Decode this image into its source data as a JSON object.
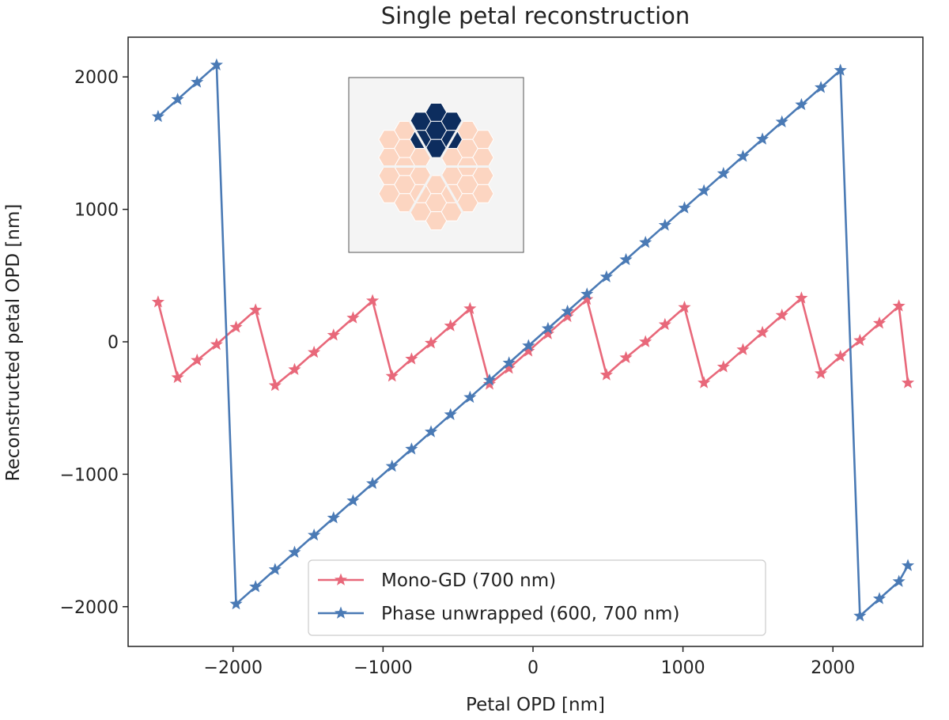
{
  "chart_data": {
    "type": "line",
    "title": "Single petal reconstruction",
    "xlabel": "Petal OPD [nm]",
    "ylabel": "Reconstructed petal OPD [nm]",
    "xlim": [
      -2700,
      2600
    ],
    "ylim": [
      -2300,
      2300
    ],
    "xticks": [
      -2000,
      -1000,
      0,
      1000,
      2000
    ],
    "xtick_labels": [
      "−2000",
      "−1000",
      "0",
      "1000",
      "2000"
    ],
    "yticks": [
      -2000,
      -1000,
      0,
      1000,
      2000
    ],
    "ytick_labels": [
      "−2000",
      "−1000",
      "0",
      "1000",
      "2000"
    ],
    "legend_position": "lower-center",
    "series": [
      {
        "name": "Mono-GD (700 nm)",
        "color": "#e8687a",
        "marker": "star",
        "x": [
          -2500,
          -2370,
          -2240,
          -2110,
          -1980,
          -1850,
          -1720,
          -1590,
          -1460,
          -1330,
          -1200,
          -1070,
          -940,
          -810,
          -680,
          -550,
          -420,
          -290,
          -160,
          -30,
          100,
          230,
          360,
          490,
          620,
          750,
          880,
          1010,
          1140,
          1270,
          1400,
          1530,
          1660,
          1790,
          1920,
          2050,
          2180,
          2310,
          2440,
          2500
        ],
        "y": [
          300,
          -270,
          -140,
          -20,
          110,
          240,
          -330,
          -210,
          -80,
          50,
          180,
          310,
          -260,
          -130,
          -10,
          120,
          250,
          -320,
          -200,
          -70,
          60,
          190,
          320,
          -250,
          -120,
          0,
          130,
          260,
          -310,
          -190,
          -60,
          70,
          200,
          330,
          -240,
          -110,
          10,
          140,
          270,
          -310
        ]
      },
      {
        "name": "Phase unwrapped (600, 700 nm)",
        "color": "#4a7ab5",
        "marker": "star",
        "x": [
          -2500,
          -2370,
          -2240,
          -2110,
          -1980,
          -1850,
          -1720,
          -1590,
          -1460,
          -1330,
          -1200,
          -1070,
          -940,
          -810,
          -680,
          -550,
          -420,
          -290,
          -160,
          -30,
          100,
          230,
          360,
          490,
          620,
          750,
          880,
          1010,
          1140,
          1270,
          1400,
          1530,
          1660,
          1790,
          1920,
          2050,
          2180,
          2310,
          2440,
          2500
        ],
        "y": [
          1700,
          1830,
          1960,
          2090,
          -1980,
          -1850,
          -1720,
          -1590,
          -1460,
          -1330,
          -1200,
          -1070,
          -940,
          -810,
          -680,
          -550,
          -420,
          -290,
          -160,
          -30,
          100,
          230,
          360,
          490,
          620,
          750,
          880,
          1010,
          1140,
          1270,
          1400,
          1530,
          1660,
          1790,
          1920,
          2050,
          -2070,
          -1940,
          -1810,
          -1690
        ]
      }
    ]
  },
  "inset": {
    "name": "segmented-pupil-inset",
    "background_color": "#f4f4f4",
    "segment_color": "#fcd5c1",
    "highlight_color": "#0d2d5e"
  }
}
